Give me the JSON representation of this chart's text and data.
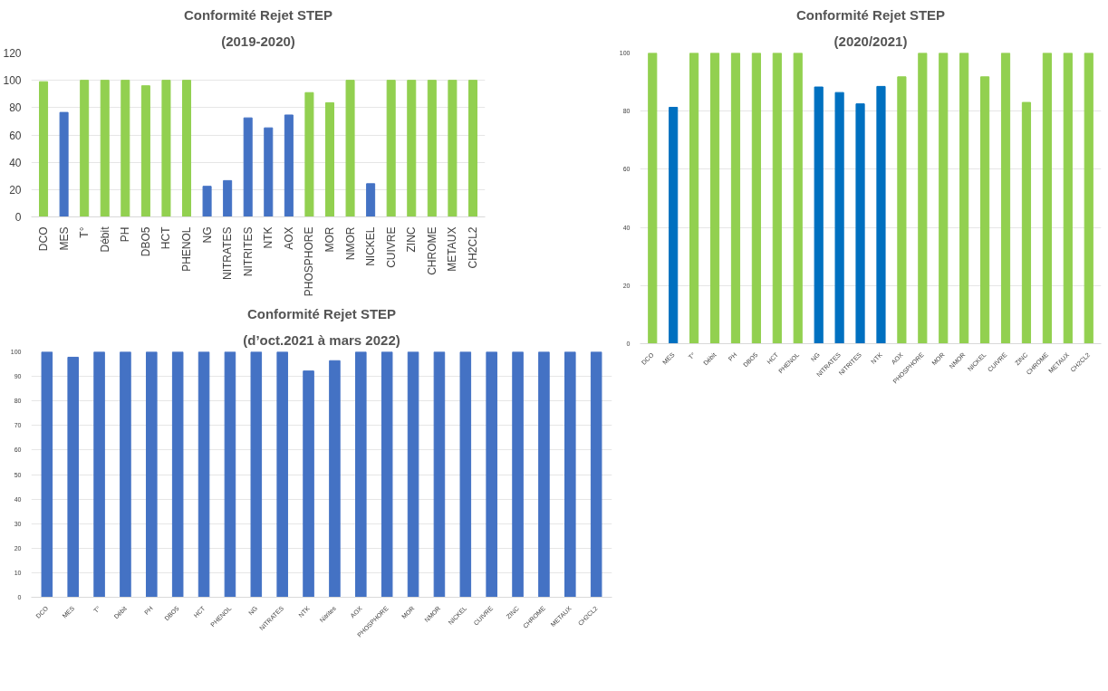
{
  "chart_data": [
    {
      "type": "bar",
      "title": "Conformité Rejet STEP",
      "subtitle": "(2019-2020)",
      "categories": [
        "DCO",
        "MES",
        "T°",
        "Débit",
        "PH",
        "DBO5",
        "HCT",
        "PHENOL",
        "NG",
        "NITRATES",
        "NITRITES",
        "NTK",
        "AOX",
        "PHOSPHORE",
        "MOR",
        "NMOR",
        "NICKEL",
        "CUIVRE",
        "ZINC",
        "CHROME",
        "METAUX",
        "CH2CL2"
      ],
      "values": [
        99,
        76.5,
        100,
        100,
        100,
        96,
        100,
        100,
        22.4,
        26.6,
        72.5,
        65.2,
        74.6,
        91,
        83.6,
        100,
        24.3,
        100,
        100,
        100,
        100,
        100
      ],
      "colors": [
        "#92d050",
        "#4472c4",
        "#92d050",
        "#92d050",
        "#92d050",
        "#92d050",
        "#92d050",
        "#92d050",
        "#4472c4",
        "#4472c4",
        "#4472c4",
        "#4472c4",
        "#4472c4",
        "#92d050",
        "#92d050",
        "#92d050",
        "#4472c4",
        "#92d050",
        "#92d050",
        "#92d050",
        "#92d050",
        "#92d050"
      ],
      "ylim": [
        0,
        120
      ],
      "yticks": [
        0,
        20,
        40,
        60,
        80,
        100,
        120
      ],
      "grid": "y"
    },
    {
      "type": "bar",
      "title": "Conformité Rejet STEP",
      "subtitle": "(2020/2021)",
      "categories": [
        "DCO",
        "MES",
        "T°",
        "Débit",
        "PH",
        "DBO5",
        "HCT",
        "PHENOL",
        "NG",
        "NITRATES",
        "NITRITES",
        "NTK",
        "AOX",
        "PHOSPHORE",
        "MOR",
        "NMOR",
        "NICKEL",
        "CUIVRE",
        "ZINC",
        "CHROME",
        "METAUX",
        "CH2CL2"
      ],
      "values": [
        100,
        81.3,
        100,
        100,
        100,
        100,
        100,
        100,
        88.3,
        86.4,
        82.5,
        88.5,
        91.8,
        100,
        100,
        100,
        91.8,
        100,
        83,
        100,
        100,
        100
      ],
      "colors": [
        "#92d050",
        "#0070c0",
        "#92d050",
        "#92d050",
        "#92d050",
        "#92d050",
        "#92d050",
        "#92d050",
        "#0070c0",
        "#0070c0",
        "#0070c0",
        "#0070c0",
        "#92d050",
        "#92d050",
        "#92d050",
        "#92d050",
        "#92d050",
        "#92d050",
        "#92d050",
        "#92d050",
        "#92d050",
        "#92d050"
      ],
      "ylim": [
        0,
        100
      ],
      "yticks": [
        0,
        20,
        40,
        60,
        80,
        100
      ],
      "grid": "y"
    },
    {
      "type": "bar",
      "title": "Conformité Rejet STEP",
      "subtitle": "(d’oct.2021 à mars 2022)",
      "categories": [
        "DCO",
        "MES",
        "T°",
        "Débit",
        "PH",
        "DBO5",
        "HCT",
        "PHENOL",
        "NG",
        "NITRATES",
        "NTK",
        "Nitrites",
        "AOX",
        "PHOSPHORE",
        "MOR",
        "NMOR",
        "NICKEL",
        "CUIVRE",
        "ZINC",
        "CHROME",
        "METAUX",
        "CH2CL2"
      ],
      "values": [
        100,
        97.8,
        100,
        100,
        100,
        100,
        100,
        100,
        100,
        100,
        92.2,
        96.4,
        100,
        100,
        100,
        100,
        100,
        100,
        100,
        100,
        100,
        100
      ],
      "color": "#4472c4",
      "ylim": [
        0,
        100
      ],
      "yticks": [
        0,
        10,
        20,
        30,
        40,
        50,
        60,
        70,
        80,
        90,
        100
      ],
      "grid": "y"
    }
  ]
}
